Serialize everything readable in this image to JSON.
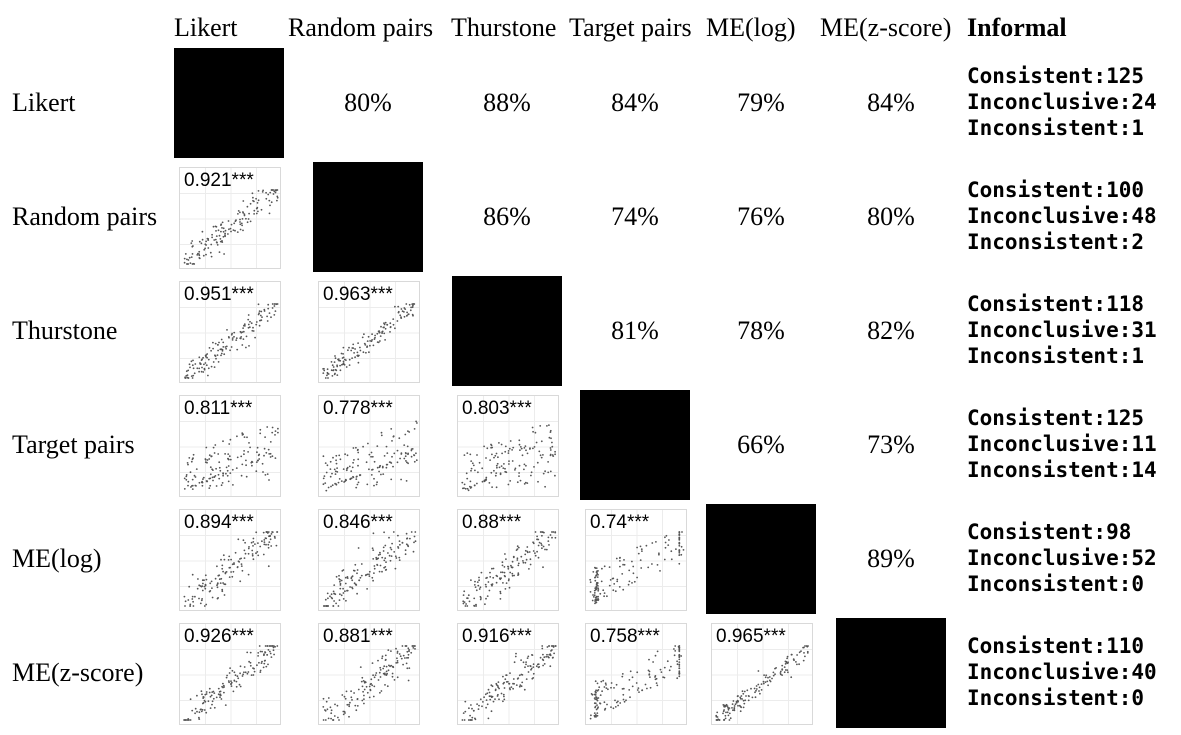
{
  "columns": [
    "Likert",
    "Random pairs",
    "Thurstone",
    "Target pairs",
    "ME(log)",
    "ME(z-score)",
    "Informal"
  ],
  "rows": [
    "Likert",
    "Random pairs",
    "Thurstone",
    "Target pairs",
    "ME(log)",
    "ME(z-score)"
  ],
  "upper": [
    [
      null,
      "80%",
      "88%",
      "84%",
      "79%",
      "84%"
    ],
    [
      null,
      null,
      "86%",
      "74%",
      "76%",
      "80%"
    ],
    [
      null,
      null,
      null,
      "81%",
      "78%",
      "82%"
    ],
    [
      null,
      null,
      null,
      null,
      "66%",
      "73%"
    ],
    [
      null,
      null,
      null,
      null,
      null,
      "89%"
    ],
    [
      null,
      null,
      null,
      null,
      null,
      null
    ]
  ],
  "lower": [
    [],
    [
      "0.921***"
    ],
    [
      "0.951***",
      "0.963***"
    ],
    [
      "0.811***",
      "0.778***",
      "0.803***"
    ],
    [
      "0.894***",
      "0.846***",
      "0.88***",
      "0.74***"
    ],
    [
      "0.926***",
      "0.881***",
      "0.916***",
      "0.758***",
      "0.965***"
    ]
  ],
  "informal": [
    {
      "consistent": "Consistent:125",
      "inconclusive": "Inconclusive:24",
      "inconsistent": "Inconsistent:1"
    },
    {
      "consistent": "Consistent:100",
      "inconclusive": "Inconclusive:48",
      "inconsistent": "Inconsistent:2"
    },
    {
      "consistent": "Consistent:118",
      "inconclusive": "Inconclusive:31",
      "inconsistent": "Inconsistent:1"
    },
    {
      "consistent": "Consistent:125",
      "inconclusive": "Inconclusive:11",
      "inconsistent": "Inconsistent:14"
    },
    {
      "consistent": "Consistent:98",
      "inconclusive": "Inconclusive:52",
      "inconsistent": "Inconsistent:0"
    },
    {
      "consistent": "Consistent:110",
      "inconclusive": "Inconclusive:40",
      "inconsistent": "Inconsistent:0"
    }
  ],
  "chart_data": {
    "type": "scatter",
    "correlations": [
      {
        "row": "Random pairs",
        "col": "Likert",
        "r": 0.921
      },
      {
        "row": "Thurstone",
        "col": "Likert",
        "r": 0.951
      },
      {
        "row": "Thurstone",
        "col": "Random pairs",
        "r": 0.963
      },
      {
        "row": "Target pairs",
        "col": "Likert",
        "r": 0.811
      },
      {
        "row": "Target pairs",
        "col": "Random pairs",
        "r": 0.778
      },
      {
        "row": "Target pairs",
        "col": "Thurstone",
        "r": 0.803
      },
      {
        "row": "ME(log)",
        "col": "Likert",
        "r": 0.894
      },
      {
        "row": "ME(log)",
        "col": "Random pairs",
        "r": 0.846
      },
      {
        "row": "ME(log)",
        "col": "Thurstone",
        "r": 0.88
      },
      {
        "row": "ME(log)",
        "col": "Target pairs",
        "r": 0.74
      },
      {
        "row": "ME(z-score)",
        "col": "Likert",
        "r": 0.926
      },
      {
        "row": "ME(z-score)",
        "col": "Random pairs",
        "r": 0.881
      },
      {
        "row": "ME(z-score)",
        "col": "Thurstone",
        "r": 0.916
      },
      {
        "row": "ME(z-score)",
        "col": "Target pairs",
        "r": 0.758
      },
      {
        "row": "ME(z-score)",
        "col": "ME(log)",
        "r": 0.965
      }
    ],
    "colors": {
      "diagonal": "#000000",
      "points": "#555555",
      "grid": "#ececec",
      "frame": "#d9d9d9"
    }
  }
}
